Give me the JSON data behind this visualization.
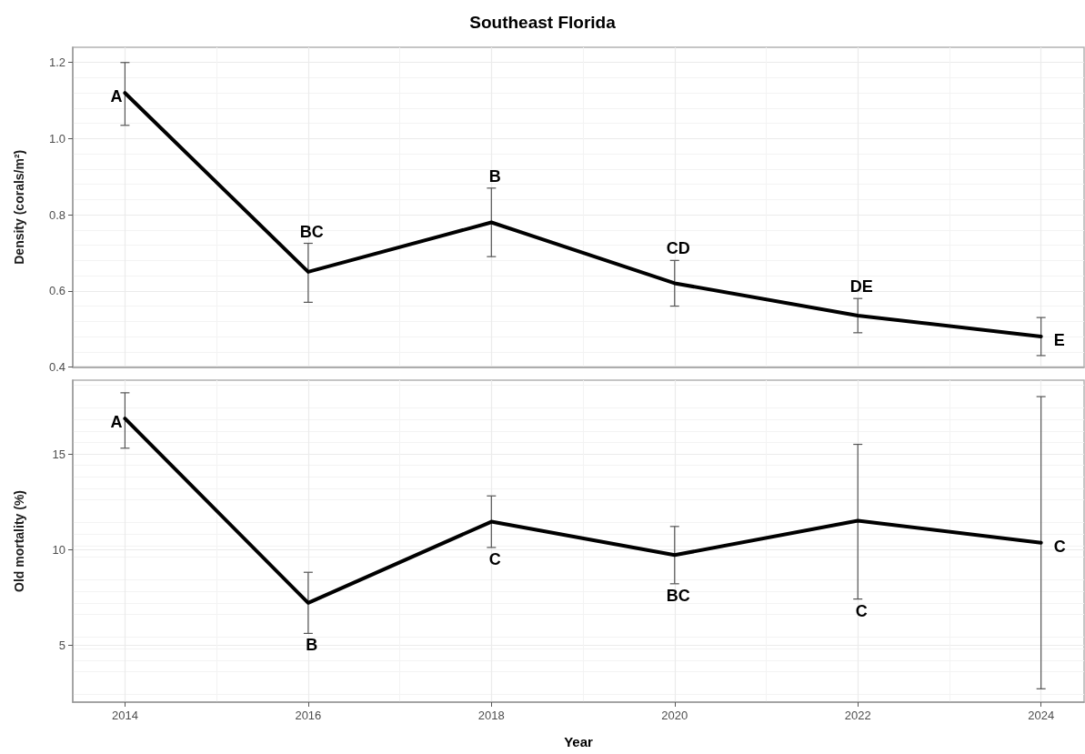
{
  "chart_data": [
    {
      "type": "line",
      "title": "Southeast Florida",
      "ylabel": "Density (corals/m²)",
      "x": [
        2014,
        2016,
        2018,
        2020,
        2022,
        2024
      ],
      "series": [
        {
          "color": "#000000",
          "values": [
            1.12,
            0.65,
            0.78,
            0.62,
            0.535,
            0.48
          ],
          "errors": [
            [
              1.035,
              1.2
            ],
            [
              0.57,
              0.725
            ],
            [
              0.69,
              0.87
            ],
            [
              0.56,
              0.68
            ],
            [
              0.49,
              0.58
            ],
            [
              0.43,
              0.53
            ]
          ]
        }
      ],
      "annotations": [
        {
          "text": "A",
          "x": 2014,
          "y": 1.12
        },
        {
          "text": "BC",
          "x": 2016,
          "y": 0.65
        },
        {
          "text": "B",
          "x": 2018,
          "y": 0.78
        },
        {
          "text": "CD",
          "x": 2020,
          "y": 0.62
        },
        {
          "text": "DE",
          "x": 2022,
          "y": 0.535
        },
        {
          "text": "E",
          "x": 2024,
          "y": 0.48
        }
      ],
      "xlim": [
        2013.43,
        2024.47
      ],
      "xticks": [
        2014,
        2016,
        2018,
        2020,
        2022,
        2024
      ],
      "ylim": [
        0.4,
        1.24
      ],
      "yticks": [
        0.4,
        0.6,
        0.8,
        {
          "value": 1.0,
          "label": "1.0"
        },
        1.2
      ],
      "grid": true,
      "line_style": "solid",
      "tick_labels": "y"
    },
    {
      "type": "line",
      "xlabel": "Year",
      "ylabel": "Old mortality (%)",
      "x": [
        2014,
        2016,
        2018,
        2020,
        2022,
        2024
      ],
      "series": [
        {
          "color": "#000000",
          "values": [
            16.85,
            7.2,
            11.45,
            9.7,
            11.5,
            10.35
          ],
          "errors": [
            [
              15.3,
              18.2
            ],
            [
              5.6,
              8.8
            ],
            [
              10.1,
              12.8
            ],
            [
              8.2,
              11.2
            ],
            [
              7.4,
              15.5
            ],
            [
              2.7,
              18.0
            ]
          ]
        }
      ],
      "annotations": [
        {
          "text": "A",
          "x": 2014,
          "y": 16.85
        },
        {
          "text": "B",
          "x": 2016,
          "y": 7.2
        },
        {
          "text": "C",
          "x": 2018,
          "y": 11.45
        },
        {
          "text": "BC",
          "x": 2020,
          "y": 9.7
        },
        {
          "text": "C",
          "x": 2022,
          "y": 7.4
        },
        {
          "text": "C",
          "x": 2024,
          "y": 10.35
        }
      ],
      "xlim": [
        2013.43,
        2024.47
      ],
      "xticks": [
        2014,
        2016,
        2018,
        2020,
        2022,
        2024
      ],
      "ylim": [
        2.0,
        18.86
      ],
      "yticks": [
        5,
        10,
        15
      ],
      "grid": true,
      "line_style": "solid"
    }
  ]
}
